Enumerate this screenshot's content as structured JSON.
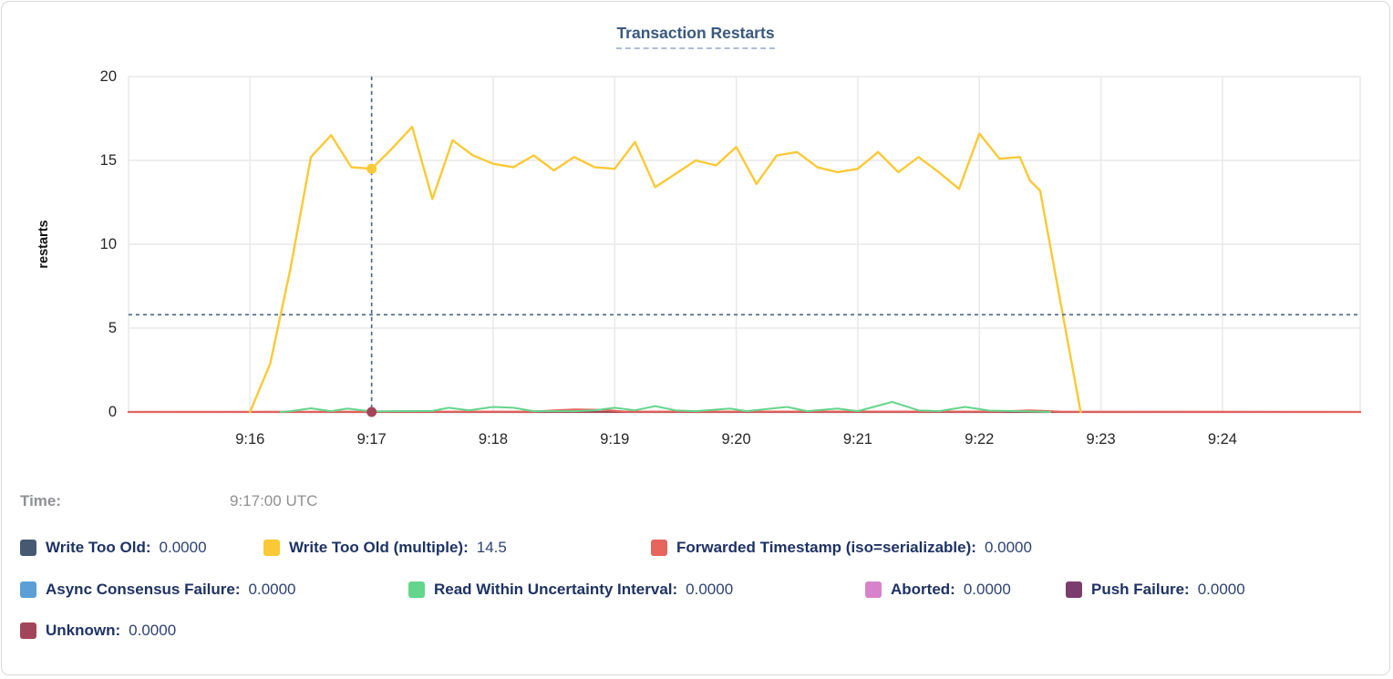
{
  "chart_data": {
    "type": "line",
    "title": "Transaction Restarts",
    "ylabel": "restarts",
    "xlabel": "",
    "ylim": [
      0,
      20
    ],
    "yticks": [
      0,
      5,
      10,
      15,
      20
    ],
    "xtick_labels": [
      "9:16",
      "9:17",
      "9:18",
      "9:19",
      "9:20",
      "9:21",
      "9:22",
      "9:23",
      "9:24"
    ],
    "x_domain": [
      "9:15:00",
      "9:25:08"
    ],
    "grid": true,
    "legend_position": "bottom",
    "series": [
      {
        "name": "Write Too Old",
        "color": "#475872",
        "legend_value": "0.0000",
        "width": 2,
        "points": [
          [
            "9:15:00",
            0
          ],
          [
            "9:25:08",
            0
          ]
        ]
      },
      {
        "name": "Write Too Old (multiple)",
        "color": "#fbc935",
        "legend_value": "14.5",
        "width": 2.4,
        "points": [
          [
            "9:16:00",
            0
          ],
          [
            "9:16:10",
            2.9
          ],
          [
            "9:16:20",
            8.6
          ],
          [
            "9:16:30",
            15.2
          ],
          [
            "9:16:40",
            16.5
          ],
          [
            "9:16:50",
            14.6
          ],
          [
            "9:17:00",
            14.5
          ],
          [
            "9:17:10",
            15.7
          ],
          [
            "9:17:20",
            17.0
          ],
          [
            "9:17:30",
            12.7
          ],
          [
            "9:17:40",
            16.2
          ],
          [
            "9:17:50",
            15.3
          ],
          [
            "9:18:00",
            14.8
          ],
          [
            "9:18:10",
            14.6
          ],
          [
            "9:18:20",
            15.3
          ],
          [
            "9:18:30",
            14.4
          ],
          [
            "9:18:40",
            15.2
          ],
          [
            "9:18:50",
            14.6
          ],
          [
            "9:19:00",
            14.5
          ],
          [
            "9:19:10",
            16.1
          ],
          [
            "9:19:20",
            13.4
          ],
          [
            "9:19:30",
            14.2
          ],
          [
            "9:19:40",
            15.0
          ],
          [
            "9:19:50",
            14.7
          ],
          [
            "9:20:00",
            15.8
          ],
          [
            "9:20:10",
            13.6
          ],
          [
            "9:20:20",
            15.3
          ],
          [
            "9:20:30",
            15.5
          ],
          [
            "9:20:40",
            14.6
          ],
          [
            "9:20:50",
            14.3
          ],
          [
            "9:21:00",
            14.5
          ],
          [
            "9:21:10",
            15.5
          ],
          [
            "9:21:20",
            14.3
          ],
          [
            "9:21:30",
            15.2
          ],
          [
            "9:21:40",
            14.3
          ],
          [
            "9:21:50",
            13.3
          ],
          [
            "9:22:00",
            16.6
          ],
          [
            "9:22:10",
            15.1
          ],
          [
            "9:22:20",
            15.2
          ],
          [
            "9:22:25",
            13.8
          ],
          [
            "9:22:30",
            13.2
          ],
          [
            "9:22:40",
            6.6
          ],
          [
            "9:22:50",
            0
          ]
        ]
      },
      {
        "name": "Forwarded Timestamp (iso=serializable)",
        "color": "#e6655c",
        "legend_value": "0.0000",
        "width": 2,
        "points": [
          [
            "9:15:00",
            0
          ],
          [
            "9:18:20",
            0.02
          ],
          [
            "9:18:30",
            0.1
          ],
          [
            "9:18:40",
            0.15
          ],
          [
            "9:18:55",
            0.12
          ],
          [
            "9:19:05",
            0.02
          ],
          [
            "9:22:10",
            0.03
          ],
          [
            "9:22:25",
            0.1
          ],
          [
            "9:22:40",
            0.02
          ],
          [
            "9:25:08",
            0
          ]
        ]
      },
      {
        "name": "Async Consensus Failure",
        "color": "#5c9fd6",
        "legend_value": "0.0000",
        "width": 2,
        "points": [
          [
            "9:15:00",
            0
          ],
          [
            "9:25:08",
            0
          ]
        ]
      },
      {
        "name": "Read Within Uncertainty Interval",
        "color": "#64d58c",
        "legend_value": "0.0000",
        "width": 2,
        "points": [
          [
            "9:16:15",
            0
          ],
          [
            "9:16:20",
            0.05
          ],
          [
            "9:16:30",
            0.22
          ],
          [
            "9:16:40",
            0.05
          ],
          [
            "9:16:48",
            0.2
          ],
          [
            "9:17:00",
            0.03
          ],
          [
            "9:17:10",
            0.05
          ],
          [
            "9:17:30",
            0.06
          ],
          [
            "9:17:38",
            0.25
          ],
          [
            "9:17:48",
            0.1
          ],
          [
            "9:18:00",
            0.3
          ],
          [
            "9:18:10",
            0.25
          ],
          [
            "9:18:20",
            0.05
          ],
          [
            "9:18:40",
            0.05
          ],
          [
            "9:18:50",
            0.1
          ],
          [
            "9:19:00",
            0.25
          ],
          [
            "9:19:10",
            0.1
          ],
          [
            "9:19:20",
            0.35
          ],
          [
            "9:19:30",
            0.1
          ],
          [
            "9:19:40",
            0.05
          ],
          [
            "9:19:57",
            0.2
          ],
          [
            "9:20:05",
            0.05
          ],
          [
            "9:20:25",
            0.3
          ],
          [
            "9:20:35",
            0.05
          ],
          [
            "9:20:50",
            0.2
          ],
          [
            "9:21:00",
            0.05
          ],
          [
            "9:21:17",
            0.6
          ],
          [
            "9:21:30",
            0.1
          ],
          [
            "9:21:40",
            0.05
          ],
          [
            "9:21:53",
            0.3
          ],
          [
            "9:22:05",
            0.08
          ],
          [
            "9:22:20",
            0.05
          ],
          [
            "9:22:35",
            0
          ]
        ]
      },
      {
        "name": "Aborted",
        "color": "#d783cc",
        "legend_value": "0.0000",
        "width": 2,
        "points": [
          [
            "9:15:00",
            0
          ],
          [
            "9:25:08",
            0
          ]
        ]
      },
      {
        "name": "Push Failure",
        "color": "#7b3d6e",
        "legend_value": "0.0000",
        "width": 2,
        "points": [
          [
            "9:15:00",
            0
          ],
          [
            "9:25:08",
            0
          ]
        ]
      },
      {
        "name": "Unknown",
        "color": "#a2455a",
        "legend_value": "0.0000",
        "width": 2.3,
        "points": [
          [
            "9:15:00",
            0
          ],
          [
            "9:25:08",
            0
          ]
        ]
      }
    ],
    "draw_order": [
      0,
      3,
      5,
      6,
      7,
      2,
      4,
      1
    ],
    "legend_rows": [
      [
        0,
        1,
        2
      ],
      [
        3,
        4,
        5,
        6
      ],
      [
        7
      ]
    ],
    "cursor": {
      "time_label": "Time:",
      "time_value": "9:17:00 UTC",
      "x_time": "9:17:00",
      "crosshair_value": 5.8,
      "markers": [
        {
          "series_index": 1,
          "value": 14.5
        },
        {
          "series_index": 7,
          "value": 0
        }
      ]
    }
  }
}
